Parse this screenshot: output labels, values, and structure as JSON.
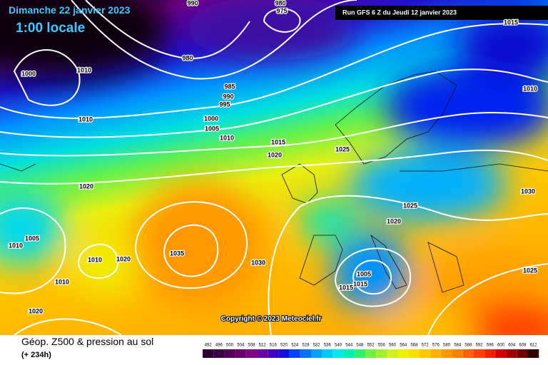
{
  "header": {
    "date": "Dimanche 22 janvier 2023",
    "time": "1:00 locale",
    "run": "Run GFS 6 Z du Jeudi 12 janvier 2023"
  },
  "map": {
    "copyright": "Copyright © 2023 Meteociel.fr",
    "isobar_labels": [
      "990",
      "980",
      "975",
      "980",
      "1000",
      "1010",
      "985",
      "990",
      "995",
      "1010",
      "1000",
      "1005",
      "1010",
      "1015",
      "1020",
      "1025",
      "1015",
      "1010",
      "1020",
      "1030",
      "1025",
      "1020",
      "1005",
      "1010",
      "1010",
      "1020",
      "1035",
      "1030",
      "1025",
      "1005",
      "1010",
      "1015",
      "1015",
      "1020"
    ]
  },
  "footer": {
    "title": "Géop. Z500 & pression au sol",
    "lead_time": "(+ 234h)",
    "legend_values": [
      492,
      496,
      500,
      504,
      508,
      512,
      516,
      520,
      524,
      528,
      532,
      536,
      540,
      544,
      548,
      552,
      556,
      560,
      564,
      568,
      572,
      576,
      580,
      584,
      588,
      592,
      596,
      600,
      604,
      608,
      612
    ],
    "legend_colors": [
      "#2a0030",
      "#3a0040",
      "#500058",
      "#680070",
      "#800088",
      "#6a00a0",
      "#4000c0",
      "#1010e0",
      "#0040ff",
      "#0070ff",
      "#00a0ff",
      "#00c8ff",
      "#00e8f0",
      "#00f0b0",
      "#30f070",
      "#70f040",
      "#a0f030",
      "#d0f020",
      "#f0f000",
      "#f8e000",
      "#ffc800",
      "#ffb000",
      "#ff9800",
      "#ff8000",
      "#ff6000",
      "#ff4000",
      "#f02000",
      "#d00000",
      "#a00000",
      "#700000",
      "#300000"
    ]
  }
}
